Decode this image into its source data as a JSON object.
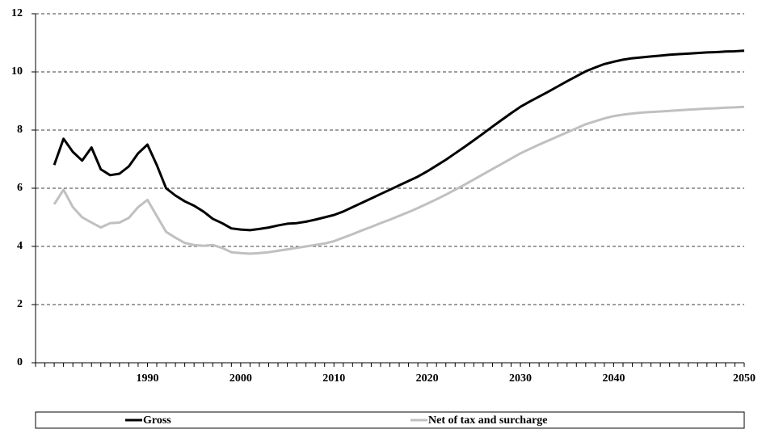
{
  "chart_data": {
    "type": "line",
    "categories": [
      null,
      null,
      null,
      null,
      null,
      null,
      null,
      null,
      null,
      null,
      null,
      null,
      "1990",
      null,
      null,
      null,
      null,
      null,
      null,
      null,
      null,
      null,
      "2000",
      null,
      null,
      null,
      null,
      null,
      null,
      null,
      null,
      null,
      "2010",
      null,
      null,
      null,
      null,
      null,
      null,
      null,
      null,
      null,
      "2020",
      null,
      null,
      null,
      null,
      null,
      null,
      null,
      null,
      null,
      "2030",
      null,
      null,
      null,
      null,
      null,
      null,
      null,
      null,
      null,
      "2040",
      null,
      null,
      null,
      null,
      null,
      null,
      null,
      null,
      null,
      null,
      null,
      null,
      null,
      "2050"
    ],
    "series": [
      {
        "name": "Gross",
        "color": "#000000",
        "values": [
          null,
          null,
          6.8,
          7.7,
          7.25,
          6.95,
          7.4,
          6.65,
          6.45,
          6.5,
          6.75,
          7.2,
          7.5,
          6.8,
          6.0,
          5.75,
          5.55,
          5.4,
          5.2,
          4.95,
          4.8,
          4.62,
          4.58,
          4.56,
          4.6,
          4.65,
          4.72,
          4.78,
          4.8,
          4.85,
          4.92,
          5.0,
          5.08,
          5.2,
          5.35,
          5.5,
          5.65,
          5.8,
          5.95,
          6.1,
          6.25,
          6.4,
          6.58,
          6.78,
          6.98,
          7.2,
          7.42,
          7.65,
          7.88,
          8.12,
          8.35,
          8.58,
          8.8,
          8.98,
          9.15,
          9.32,
          9.5,
          9.68,
          9.85,
          10.02,
          10.15,
          10.27,
          10.35,
          10.42,
          10.47,
          10.5,
          10.53,
          10.56,
          10.59,
          10.61,
          10.63,
          10.65,
          10.67,
          10.68,
          10.7,
          10.71,
          10.73
        ]
      },
      {
        "name": "Net of tax and surcharge",
        "color": "#c0c0c0",
        "values": [
          null,
          null,
          5.45,
          5.95,
          5.35,
          5.0,
          4.82,
          4.65,
          4.8,
          4.82,
          4.98,
          5.35,
          5.6,
          5.05,
          4.5,
          4.3,
          4.12,
          4.05,
          4.02,
          4.05,
          3.95,
          3.8,
          3.77,
          3.75,
          3.77,
          3.8,
          3.85,
          3.9,
          3.95,
          4.0,
          4.05,
          4.1,
          4.18,
          4.3,
          4.42,
          4.55,
          4.67,
          4.8,
          4.92,
          5.05,
          5.18,
          5.32,
          5.47,
          5.62,
          5.78,
          5.95,
          6.12,
          6.3,
          6.48,
          6.66,
          6.84,
          7.02,
          7.2,
          7.35,
          7.5,
          7.64,
          7.78,
          7.92,
          8.06,
          8.2,
          8.3,
          8.4,
          8.48,
          8.53,
          8.57,
          8.6,
          8.62,
          8.64,
          8.66,
          8.68,
          8.7,
          8.72,
          8.74,
          8.75,
          8.77,
          8.78,
          8.8
        ]
      }
    ],
    "ylim": [
      0,
      12
    ],
    "yticks": [
      0,
      2,
      4,
      6,
      8,
      10,
      12
    ],
    "grid": true,
    "legend": "bottom"
  }
}
